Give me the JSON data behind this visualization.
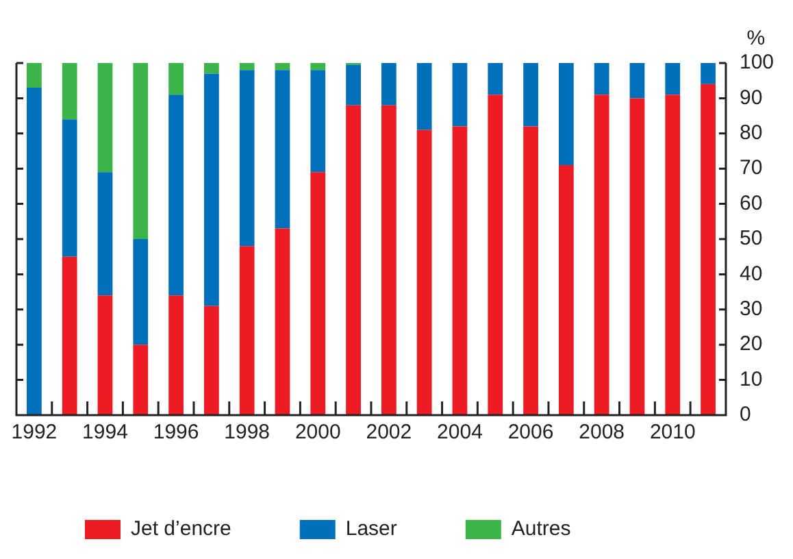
{
  "chart_data": {
    "type": "bar",
    "stacked": true,
    "ylabel": "%",
    "categories": [
      "1992",
      null,
      "1994",
      null,
      "1996",
      null,
      "1998",
      null,
      "2000",
      null,
      "2002",
      null,
      "2004",
      null,
      "2006",
      null,
      "2008",
      null,
      "2010",
      null
    ],
    "series": [
      {
        "name": "Jet d’encre",
        "color": "#ed1c24",
        "values": [
          0,
          45,
          34,
          20,
          34,
          31,
          48,
          53,
          69,
          88,
          88,
          81,
          82,
          91,
          82,
          71,
          91,
          90,
          91,
          94
        ]
      },
      {
        "name": "Laser",
        "color": "#0070bb",
        "values": [
          93,
          39,
          35,
          30,
          57,
          66,
          50,
          45,
          29,
          11.5,
          12,
          19,
          18,
          9,
          18,
          29,
          9,
          10,
          9,
          6
        ]
      },
      {
        "name": "Autres",
        "color": "#3cb44a",
        "values": [
          7,
          16,
          31,
          50,
          9,
          3,
          2,
          2,
          2,
          0.5,
          0,
          0,
          0,
          0,
          0,
          0,
          0,
          0,
          0,
          0
        ]
      }
    ],
    "ylim": [
      0,
      100
    ],
    "yticks": [
      0,
      10,
      20,
      30,
      40,
      50,
      60,
      70,
      80,
      90,
      100
    ],
    "grid": false,
    "legend": "bottom left"
  }
}
